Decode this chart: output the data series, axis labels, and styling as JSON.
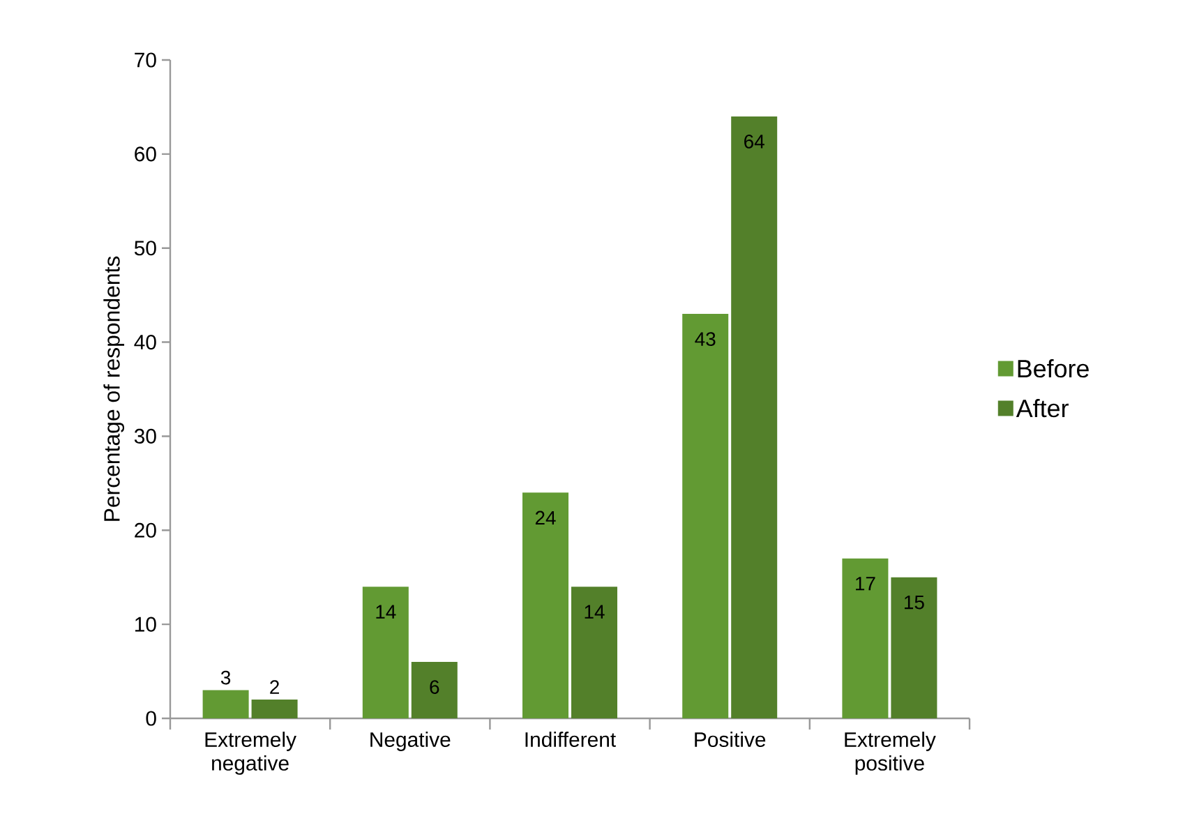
{
  "chart_data": {
    "type": "bar",
    "ylabel": "Percentage of respondents",
    "categories": [
      "Extremely negative",
      "Negative",
      "Indifferent",
      "Positive",
      "Extremely positive"
    ],
    "series": [
      {
        "name": "Before",
        "color": "#629a33",
        "values": [
          3,
          14,
          24,
          43,
          17
        ]
      },
      {
        "name": "After",
        "color": "#53802a",
        "values": [
          2,
          6,
          14,
          64,
          15
        ]
      }
    ],
    "ylim": [
      0,
      70
    ],
    "yticks": [
      0,
      10,
      20,
      30,
      40,
      50,
      60,
      70
    ],
    "data_labels": true,
    "legend": "right",
    "grid": false
  }
}
